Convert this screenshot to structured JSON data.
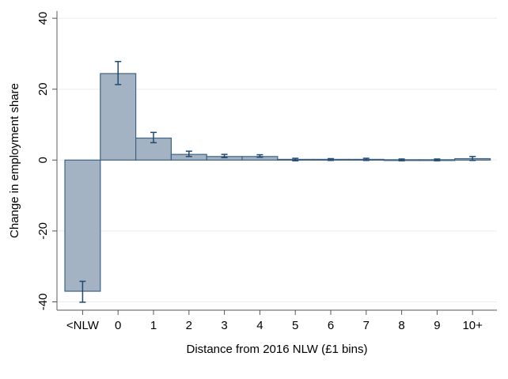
{
  "chart_data": {
    "type": "bar",
    "title": "",
    "xlabel": "Distance from 2016 NLW (£1 bins)",
    "ylabel": "Change in employment share",
    "categories": [
      "<NLW",
      "0",
      "1",
      "2",
      "3",
      "4",
      "5",
      "6",
      "7",
      "8",
      "9",
      "10+"
    ],
    "values": [
      -37.0,
      24.4,
      6.2,
      1.6,
      1.0,
      1.0,
      0.2,
      0.2,
      0.2,
      0.1,
      0.1,
      0.4
    ],
    "error_low": [
      -40.1,
      21.3,
      4.9,
      1.0,
      0.7,
      0.8,
      -0.2,
      -0.1,
      -0.1,
      -0.2,
      -0.2,
      -0.1
    ],
    "error_high": [
      -34.2,
      27.8,
      7.8,
      2.5,
      1.6,
      1.5,
      0.5,
      0.4,
      0.5,
      0.3,
      0.3,
      1.0
    ],
    "ylim": [
      -42,
      42
    ],
    "yticks": [
      -40,
      -20,
      0,
      20,
      40
    ],
    "grid": true,
    "colors": {
      "bar_fill": "#a3b3c4",
      "bar_edge": "#3d6283",
      "error_bar": "#1f4a70",
      "grid": "#e8eef0"
    }
  }
}
